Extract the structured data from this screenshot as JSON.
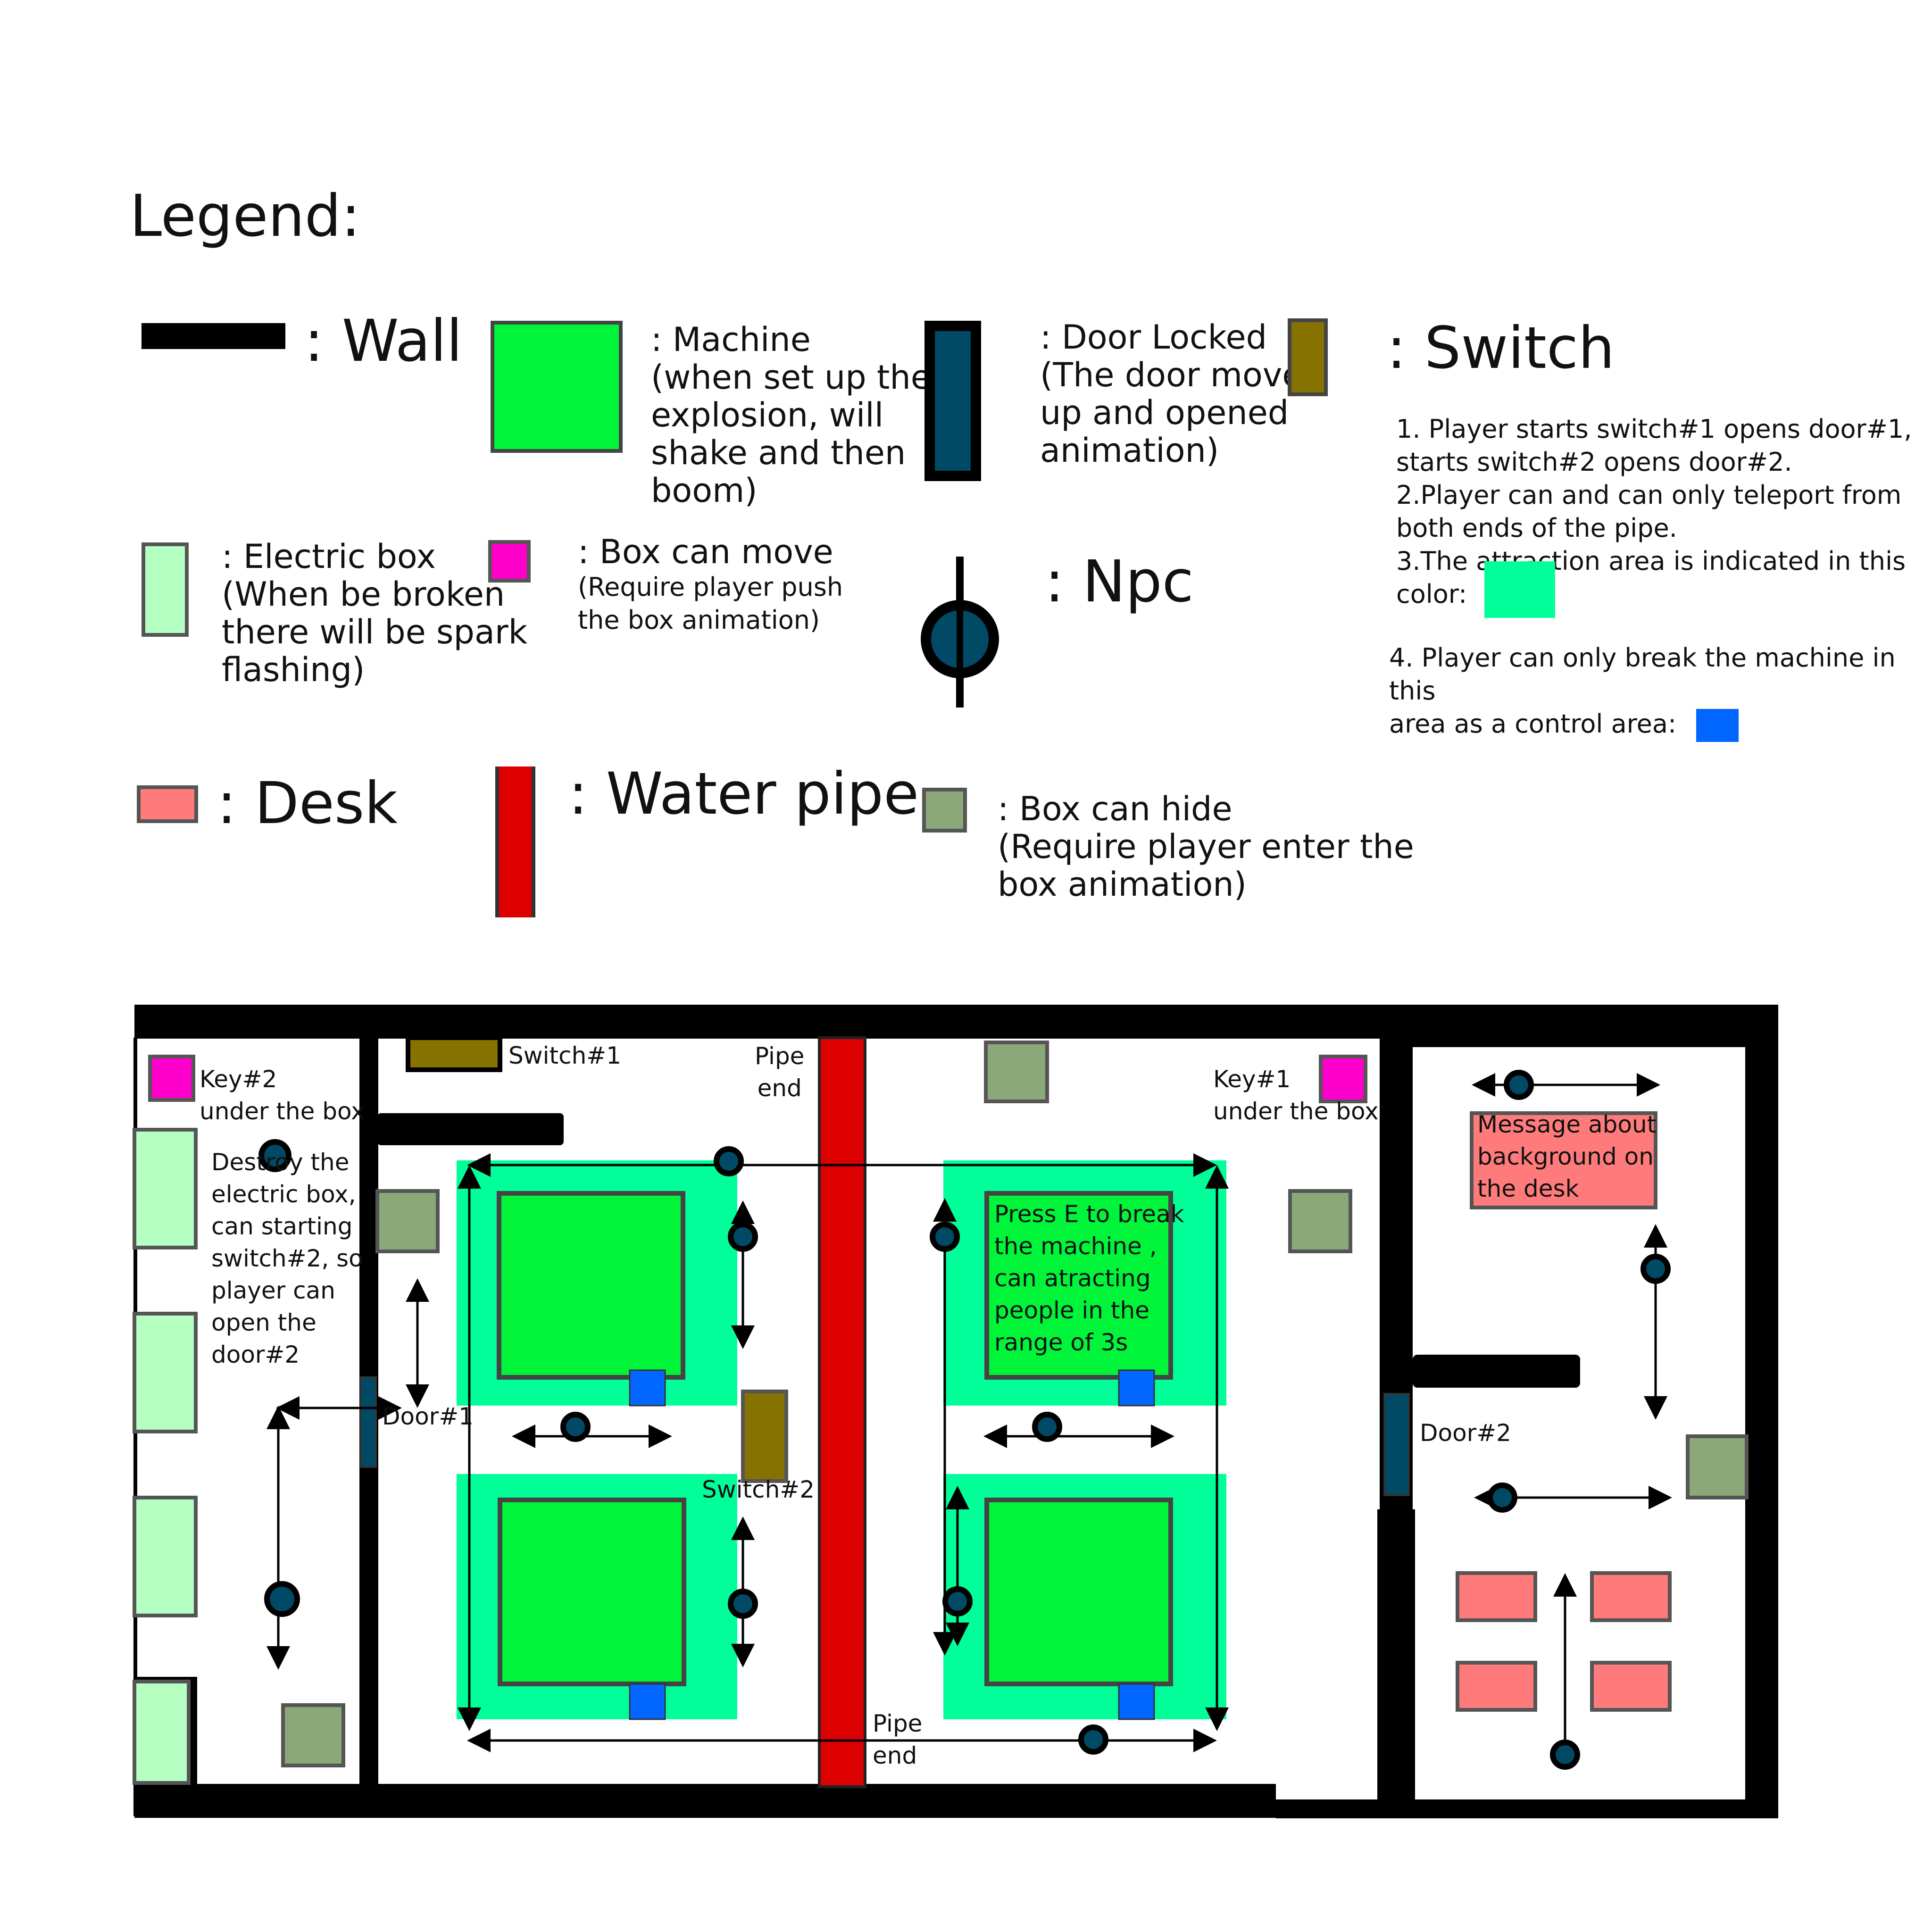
{
  "legend": {
    "title": "Legend:",
    "wall": ": Wall",
    "machine": [
      ": Machine",
      "(when set up the",
      "explosion, will",
      "shake and then",
      "boom)"
    ],
    "door": [
      ": Door Locked",
      "(The door moved",
      "up and opened",
      "animation)"
    ],
    "switch": ": Switch",
    "switch_notes": [
      "1. Player starts switch#1 opens door#1,",
      "starts switch#2 opens door#2.",
      "2.Player can and can only teleport from",
      "both ends of the pipe.",
      "3.The attraction area is indicated in this",
      "color:",
      "4. Player can only break the machine in this",
      "area as a control area:"
    ],
    "electric_box": [
      ": Electric box",
      "(When be broken",
      "there will be spark",
      "flashing)"
    ],
    "box_move": [
      ": Box can move",
      "(Require player push",
      "the box animation)"
    ],
    "npc": ": Npc",
    "desk": ": Desk",
    "water_pipe": ": Water pipe",
    "box_hide": [
      ": Box can hide",
      "(Require player enter the",
      "box animation)"
    ]
  },
  "map": {
    "key2": [
      "Key#2",
      "under the box"
    ],
    "destroy_note": [
      "Destroy the",
      "electric box,",
      "can starting",
      "switch#2, so",
      "player can",
      "open the",
      "door#2"
    ],
    "switch1": "Switch#1",
    "pipe_end_top": [
      "Pipe",
      "end"
    ],
    "key1": [
      "Key#1",
      "under the box"
    ],
    "message_desk": [
      "Message about",
      "background on",
      "the desk"
    ],
    "press_e": [
      "Press E to break",
      "the machine ,",
      "can atracting",
      "people in the",
      "range of 3s"
    ],
    "door1": "Door#1",
    "switch2": "Switch#2",
    "door2": "Door#2",
    "pipe_end_bottom": [
      "Pipe",
      "end"
    ]
  },
  "colors": {
    "wall": "#000000",
    "machine": "#00f53a",
    "attraction_area": "#00ff99",
    "control_area": "#0066ff",
    "door": "#004a66",
    "switch": "#857200",
    "electric_box": "#b6ffc2",
    "box_move": "#ff00cc",
    "desk": "#ff7b7b",
    "water_pipe": "#dd0000",
    "box_hide": "#8aa878",
    "npc": "#004a66"
  }
}
